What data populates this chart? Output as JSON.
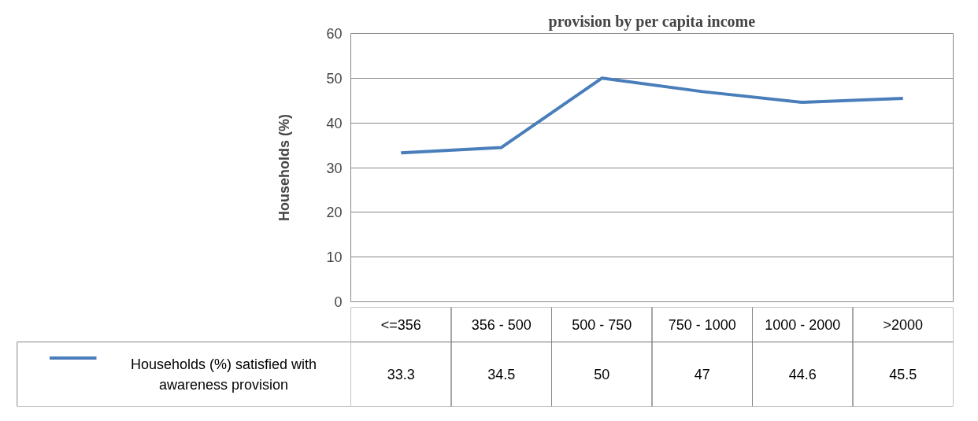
{
  "chart_data": {
    "type": "line",
    "title": "provision by per capita income",
    "ylabel": "Households (%)",
    "categories": [
      "<=356",
      "356 - 500",
      "500 - 750",
      "750 - 1000",
      "1000 - 2000",
      ">2000"
    ],
    "series": [
      {
        "name": "Households (%) satisfied with awareness provision",
        "color": "#4a7ebb",
        "values": [
          33.3,
          34.5,
          50,
          47,
          44.6,
          45.5
        ]
      }
    ],
    "ylim": [
      0,
      60
    ],
    "yticks": [
      0,
      10,
      20,
      30,
      40,
      50,
      60
    ],
    "grid": "y",
    "legend": "bottom",
    "data_labels": true,
    "marker": "none",
    "line_style": "solid"
  }
}
